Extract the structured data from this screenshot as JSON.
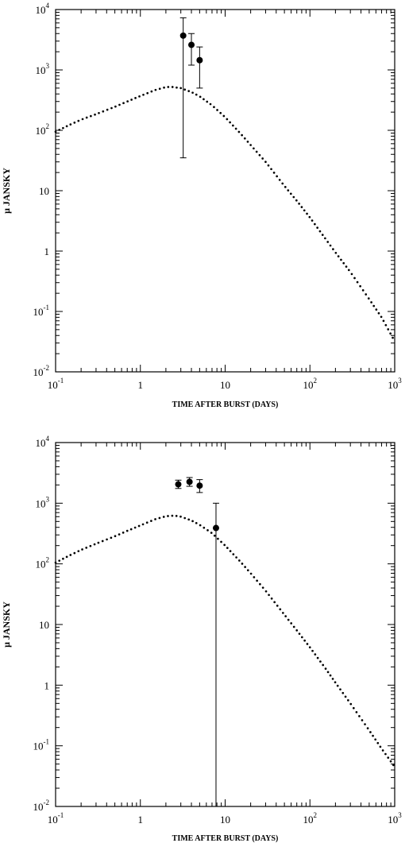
{
  "chart_data": [
    {
      "type": "scatter",
      "xlabel": "TIME AFTER BURST (DAYS)",
      "ylabel": "μ JANSKY",
      "xscale": "log",
      "yscale": "log",
      "xlim": [
        0.1,
        1000
      ],
      "ylim": [
        0.01,
        10000
      ],
      "x_ticks": [
        {
          "base": "10",
          "exp": "-1"
        },
        {
          "base": "1",
          "exp": ""
        },
        {
          "base": "10",
          "exp": ""
        },
        {
          "base": "10",
          "exp": "2"
        },
        {
          "base": "10",
          "exp": "3"
        }
      ],
      "y_ticks": [
        {
          "base": "10",
          "exp": "4"
        },
        {
          "base": "10",
          "exp": "3"
        },
        {
          "base": "10",
          "exp": "2"
        },
        {
          "base": "10",
          "exp": ""
        },
        {
          "base": "1",
          "exp": ""
        },
        {
          "base": "10",
          "exp": "-1"
        },
        {
          "base": "10",
          "exp": "-2"
        }
      ],
      "series": [
        {
          "style": "dotted-curve",
          "x": [
            0.1,
            0.15,
            0.2,
            0.3,
            0.5,
            0.7,
            1.0,
            1.5,
            2.0,
            2.3,
            3.0,
            4.0,
            5.0,
            7.0,
            10,
            15,
            20,
            30,
            50,
            70,
            100,
            150,
            200,
            300,
            500,
            700,
            1000
          ],
          "y": [
            95,
            125,
            150,
            185,
            245,
            300,
            370,
            465,
            520,
            525,
            500,
            430,
            365,
            260,
            165,
            90,
            57,
            30,
            12,
            6.8,
            3.6,
            1.65,
            0.95,
            0.45,
            0.16,
            0.08,
            0.032
          ]
        },
        {
          "style": "points-with-errorbars",
          "x": [
            3.2,
            4.0,
            5.0
          ],
          "y": [
            3700,
            2600,
            1450
          ],
          "y_low": [
            35,
            1200,
            500
          ],
          "y_high": [
            7300,
            4000,
            2400
          ]
        }
      ]
    },
    {
      "type": "scatter",
      "xlabel": "TIME AFTER BURST (DAYS)",
      "ylabel": "μ JANSKY",
      "xscale": "log",
      "yscale": "log",
      "xlim": [
        0.1,
        1000
      ],
      "ylim": [
        0.01,
        10000
      ],
      "x_ticks": [
        {
          "base": "10",
          "exp": "-1"
        },
        {
          "base": "1",
          "exp": ""
        },
        {
          "base": "10",
          "exp": ""
        },
        {
          "base": "10",
          "exp": "2"
        },
        {
          "base": "10",
          "exp": "3"
        }
      ],
      "y_ticks": [
        {
          "base": "10",
          "exp": "4"
        },
        {
          "base": "10",
          "exp": "3"
        },
        {
          "base": "10",
          "exp": "2"
        },
        {
          "base": "10",
          "exp": ""
        },
        {
          "base": "1",
          "exp": ""
        },
        {
          "base": "10",
          "exp": "-1"
        },
        {
          "base": "10",
          "exp": "-2"
        }
      ],
      "series": [
        {
          "style": "dotted-curve",
          "x": [
            0.1,
            0.15,
            0.2,
            0.3,
            0.5,
            0.7,
            1.0,
            1.5,
            2.0,
            2.5,
            3.0,
            4.0,
            5.0,
            7.0,
            10,
            15,
            20,
            30,
            50,
            70,
            100,
            150,
            200,
            300,
            500,
            700,
            1000
          ],
          "y": [
            105,
            140,
            170,
            215,
            285,
            350,
            430,
            545,
            610,
            625,
            600,
            520,
            440,
            320,
            200,
            110,
            70,
            36,
            14.5,
            8,
            4.2,
            1.95,
            1.1,
            0.5,
            0.18,
            0.09,
            0.045
          ]
        },
        {
          "style": "points-with-errorbars",
          "x": [
            2.8,
            3.8,
            5.0,
            7.8
          ],
          "y": [
            2050,
            2250,
            1950,
            390
          ],
          "y_low": [
            1750,
            1900,
            1500,
            0.01
          ],
          "y_high": [
            2400,
            2650,
            2450,
            1000
          ]
        }
      ]
    }
  ]
}
